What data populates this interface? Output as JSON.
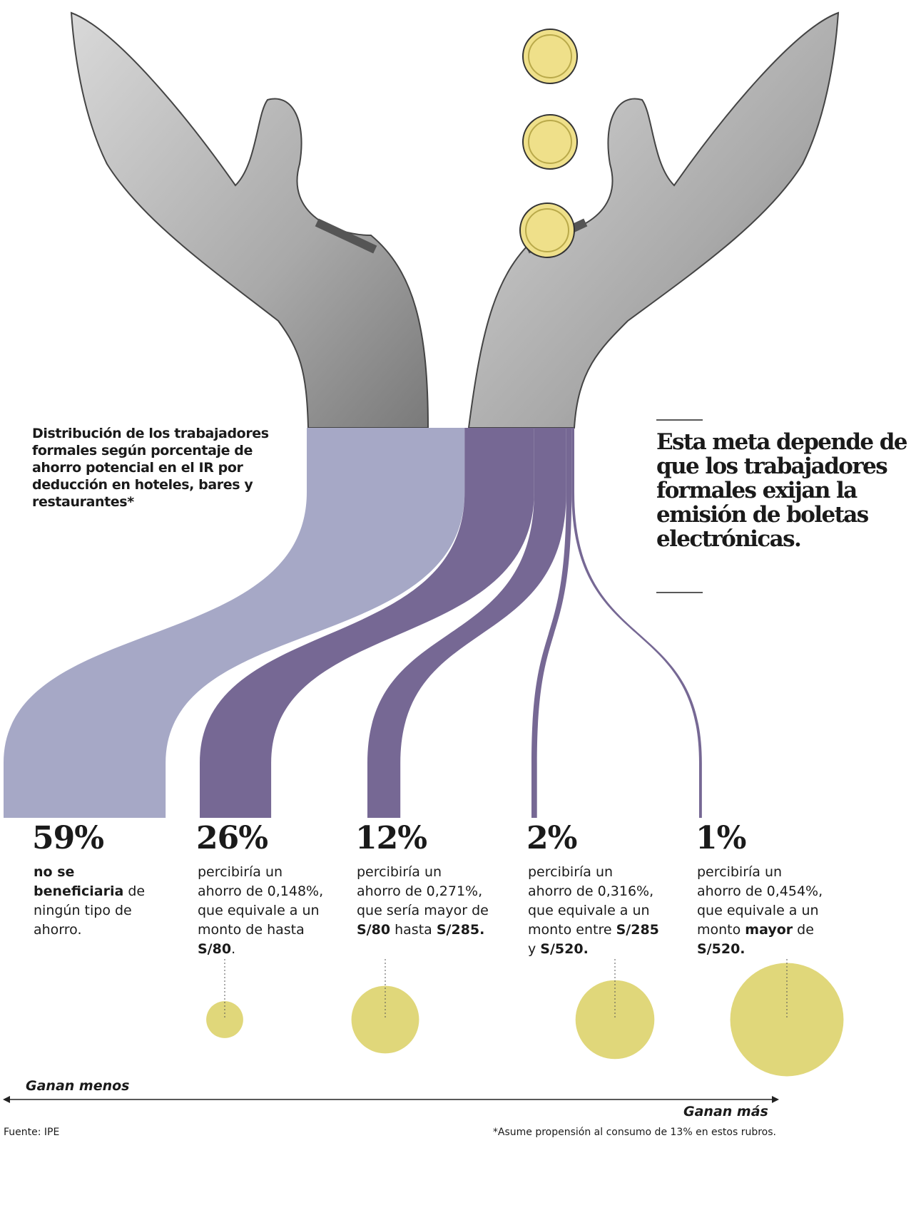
{
  "chart_data": {
    "type": "flow",
    "title": "Distribución de los trabajadores formales según porcentaje de ahorro potencial en el IR por deducción en hoteles, bares y restaurantes*",
    "values": [
      59,
      26,
      12,
      2,
      1
    ],
    "value_labels": [
      "59%",
      "26%",
      "12%",
      "2%",
      "1%"
    ],
    "colors": [
      "#a6a8c6",
      "#766894",
      "#766894",
      "#766894",
      "#766894"
    ],
    "descriptions": [
      [
        {
          "text": "no se beneficiaria",
          "bold": true
        },
        {
          "text": " de ningún tipo de ahorro."
        }
      ],
      [
        {
          "text": "percibiría un ahorro de "
        },
        {
          "text": "0,148%"
        },
        {
          "text": ", que equivale a un monto de hasta "
        },
        {
          "text": "S/80",
          "bold": true
        },
        {
          "text": "."
        }
      ],
      [
        {
          "text": "percibiría un ahorro de "
        },
        {
          "text": "0,271%"
        },
        {
          "text": ", que sería mayor de "
        },
        {
          "text": "S/80",
          "bold": true
        },
        {
          "text": " hasta "
        },
        {
          "text": "S/285.",
          "bold": true
        }
      ],
      [
        {
          "text": "percibiría un ahorro de "
        },
        {
          "text": "0,316%"
        },
        {
          "text": ", que equivale a un monto entre "
        },
        {
          "text": "S/285",
          "bold": true
        },
        {
          "text": " y "
        },
        {
          "text": "S/520.",
          "bold": true
        }
      ],
      [
        {
          "text": "percibiría un ahorro de "
        },
        {
          "text": "0,454%"
        },
        {
          "text": ", que equivale a un monto "
        },
        {
          "text": "mayor",
          "bold": true
        },
        {
          "text": " de "
        },
        {
          "text": "S/520.",
          "bold": true
        }
      ]
    ],
    "bubble_values": [
      null,
      0.148,
      0.271,
      0.316,
      0.454
    ],
    "bubble_color": "#e0d77a",
    "x_label_left": "Ganan menos",
    "x_label_right": "Ganan más",
    "callout": "Esta meta depende de que los trabajadores formales exijan la emisión de boletas electrónicas.",
    "source": "Fuente: IPE",
    "note": "*Asume propensión al consumo de 13% en estos rubros."
  }
}
